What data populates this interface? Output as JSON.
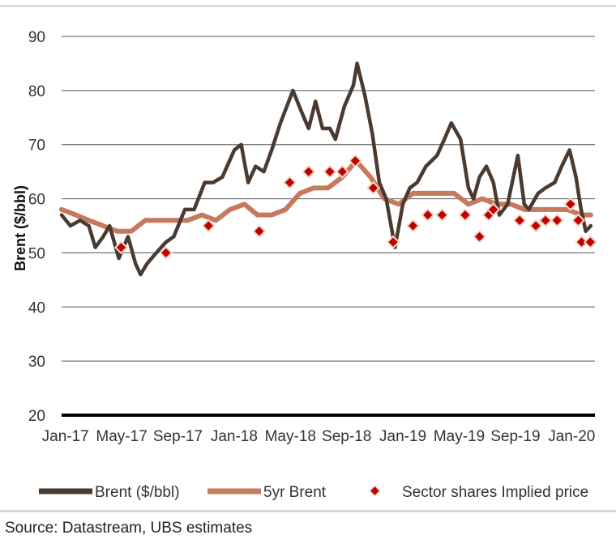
{
  "chart_data": {
    "type": "line",
    "ylabel": "Brent ($/bbl)",
    "ylim": [
      20,
      90
    ],
    "yticks": [
      20,
      30,
      40,
      50,
      60,
      70,
      80,
      90
    ],
    "xlim": [
      "2017-01-01",
      "2020-03-01"
    ],
    "xtick_labels": [
      "Jan-17",
      "May-17",
      "Sep-17",
      "Jan-18",
      "May-18",
      "Sep-18",
      "Jan-19",
      "May-19",
      "Sep-19",
      "Jan-20"
    ],
    "grid": "horizontal",
    "legend_position": "bottom",
    "series": [
      {
        "name": "Brent ($/bbl)",
        "kind": "line",
        "color": "#4b3a30",
        "points": [
          [
            "2017-01-01",
            57
          ],
          [
            "2017-01-20",
            55
          ],
          [
            "2017-02-10",
            56
          ],
          [
            "2017-03-01",
            55
          ],
          [
            "2017-03-15",
            51
          ],
          [
            "2017-04-01",
            53
          ],
          [
            "2017-04-15",
            55
          ],
          [
            "2017-05-05",
            49
          ],
          [
            "2017-05-25",
            53
          ],
          [
            "2017-06-10",
            48
          ],
          [
            "2017-06-21",
            46
          ],
          [
            "2017-07-05",
            48
          ],
          [
            "2017-07-25",
            50
          ],
          [
            "2017-08-15",
            52
          ],
          [
            "2017-09-01",
            53
          ],
          [
            "2017-09-25",
            58
          ],
          [
            "2017-10-15",
            58
          ],
          [
            "2017-11-07",
            63
          ],
          [
            "2017-11-25",
            63
          ],
          [
            "2017-12-15",
            64
          ],
          [
            "2018-01-10",
            69
          ],
          [
            "2018-01-25",
            70
          ],
          [
            "2018-02-09",
            63
          ],
          [
            "2018-02-25",
            66
          ],
          [
            "2018-03-15",
            65
          ],
          [
            "2018-04-01",
            69
          ],
          [
            "2018-04-20",
            74
          ],
          [
            "2018-05-17",
            80
          ],
          [
            "2018-06-05",
            76
          ],
          [
            "2018-06-20",
            73
          ],
          [
            "2018-07-05",
            78
          ],
          [
            "2018-07-20",
            73
          ],
          [
            "2018-08-05",
            73
          ],
          [
            "2018-08-17",
            71
          ],
          [
            "2018-09-05",
            77
          ],
          [
            "2018-09-25",
            81
          ],
          [
            "2018-10-03",
            85
          ],
          [
            "2018-10-20",
            79
          ],
          [
            "2018-11-05",
            72
          ],
          [
            "2018-11-20",
            63
          ],
          [
            "2018-12-05",
            60
          ],
          [
            "2018-12-24",
            51
          ],
          [
            "2019-01-10",
            59
          ],
          [
            "2019-01-25",
            62
          ],
          [
            "2019-02-10",
            63
          ],
          [
            "2019-03-01",
            66
          ],
          [
            "2019-03-25",
            68
          ],
          [
            "2019-04-10",
            71
          ],
          [
            "2019-04-25",
            74
          ],
          [
            "2019-05-15",
            71
          ],
          [
            "2019-06-01",
            62
          ],
          [
            "2019-06-12",
            60
          ],
          [
            "2019-06-25",
            64
          ],
          [
            "2019-07-10",
            66
          ],
          [
            "2019-07-25",
            63
          ],
          [
            "2019-08-07",
            57
          ],
          [
            "2019-08-25",
            59
          ],
          [
            "2019-09-16",
            68
          ],
          [
            "2019-09-30",
            59
          ],
          [
            "2019-10-10",
            58
          ],
          [
            "2019-10-30",
            61
          ],
          [
            "2019-11-15",
            62
          ],
          [
            "2019-12-05",
            63
          ],
          [
            "2019-12-20",
            66
          ],
          [
            "2020-01-06",
            69
          ],
          [
            "2020-01-20",
            64
          ],
          [
            "2020-01-31",
            58
          ],
          [
            "2020-02-10",
            54
          ],
          [
            "2020-02-21",
            55
          ]
        ]
      },
      {
        "name": "5yr Brent",
        "kind": "line",
        "color": "#c57a5e",
        "points": [
          [
            "2017-01-01",
            58
          ],
          [
            "2017-02-01",
            57
          ],
          [
            "2017-03-01",
            56
          ],
          [
            "2017-04-01",
            55
          ],
          [
            "2017-05-01",
            54
          ],
          [
            "2017-06-01",
            54
          ],
          [
            "2017-07-01",
            56
          ],
          [
            "2017-08-01",
            56
          ],
          [
            "2017-09-01",
            56
          ],
          [
            "2017-10-01",
            56
          ],
          [
            "2017-11-01",
            57
          ],
          [
            "2017-12-01",
            56
          ],
          [
            "2018-01-01",
            58
          ],
          [
            "2018-02-01",
            59
          ],
          [
            "2018-03-01",
            57
          ],
          [
            "2018-04-01",
            57
          ],
          [
            "2018-05-01",
            58
          ],
          [
            "2018-06-01",
            61
          ],
          [
            "2018-07-01",
            62
          ],
          [
            "2018-08-01",
            62
          ],
          [
            "2018-09-01",
            64
          ],
          [
            "2018-10-01",
            67
          ],
          [
            "2018-11-01",
            64
          ],
          [
            "2018-12-01",
            60
          ],
          [
            "2019-01-01",
            59
          ],
          [
            "2019-02-01",
            61
          ],
          [
            "2019-03-01",
            61
          ],
          [
            "2019-04-01",
            61
          ],
          [
            "2019-05-01",
            61
          ],
          [
            "2019-06-01",
            59
          ],
          [
            "2019-07-01",
            60
          ],
          [
            "2019-08-01",
            59
          ],
          [
            "2019-09-01",
            59
          ],
          [
            "2019-10-01",
            58
          ],
          [
            "2019-11-01",
            58
          ],
          [
            "2019-12-01",
            58
          ],
          [
            "2020-01-01",
            58
          ],
          [
            "2020-02-01",
            57
          ],
          [
            "2020-02-21",
            57
          ]
        ]
      },
      {
        "name": "Sector shares Implied price",
        "kind": "scatter",
        "color": "#c00000",
        "points": [
          [
            "2017-05-10",
            51
          ],
          [
            "2017-08-15",
            50
          ],
          [
            "2017-11-15",
            55
          ],
          [
            "2018-03-05",
            54
          ],
          [
            "2018-05-10",
            63
          ],
          [
            "2018-06-20",
            65
          ],
          [
            "2018-08-05",
            65
          ],
          [
            "2018-09-01",
            65
          ],
          [
            "2018-09-29",
            67
          ],
          [
            "2018-11-07",
            62
          ],
          [
            "2018-12-20",
            52
          ],
          [
            "2019-02-01",
            55
          ],
          [
            "2019-03-05",
            57
          ],
          [
            "2019-04-05",
            57
          ],
          [
            "2019-05-25",
            57
          ],
          [
            "2019-06-25",
            53
          ],
          [
            "2019-07-15",
            57
          ],
          [
            "2019-07-25",
            58
          ],
          [
            "2019-09-20",
            56
          ],
          [
            "2019-10-25",
            55
          ],
          [
            "2019-11-15",
            56
          ],
          [
            "2019-12-10",
            56
          ],
          [
            "2020-01-08",
            59
          ],
          [
            "2020-01-25",
            56
          ],
          [
            "2020-02-01",
            52
          ],
          [
            "2020-02-20",
            52
          ]
        ]
      }
    ]
  },
  "source_text": "Source: Datastream, UBS estimates"
}
